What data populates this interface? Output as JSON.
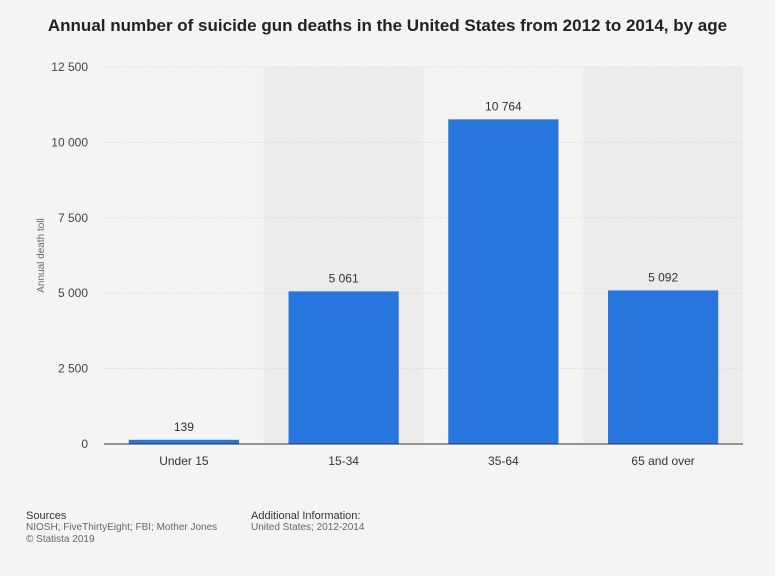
{
  "chart_data": {
    "type": "bar",
    "title": "Annual number of suicide gun deaths in the United States from 2012 to 2014, by age",
    "xlabel": "",
    "ylabel": "Annual death toll",
    "categories": [
      "Under 15",
      "15-34",
      "35-64",
      "65 and over"
    ],
    "values": [
      139,
      5061,
      10764,
      5092
    ],
    "value_labels": [
      "139",
      "5 061",
      "10 764",
      "5 092"
    ],
    "ylim": [
      0,
      12500
    ],
    "yticks": [
      0,
      2500,
      5000,
      7500,
      10000,
      12500
    ],
    "ytick_labels": [
      "0",
      "2 500",
      "5 000",
      "7 500",
      "10 000",
      "12 500"
    ],
    "grid": true,
    "bar_color": "#2876dd"
  },
  "footer": {
    "sources_heading": "Sources",
    "sources_text": "NIOSH; FiveThirtyEight; FBI; Mother Jones",
    "copyright": "© Statista 2019",
    "additional_heading": "Additional Information:",
    "additional_text": "United States; 2012-2014"
  }
}
